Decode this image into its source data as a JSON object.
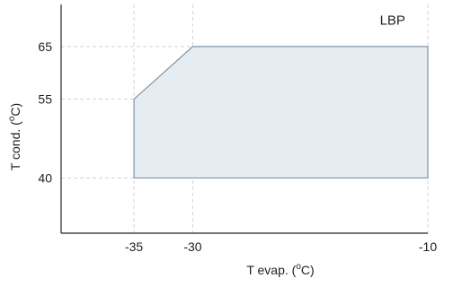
{
  "chart_data": {
    "type": "area",
    "title": "",
    "xlabel": "T evap. (°C)",
    "ylabel": "T cond. (°C)",
    "xlabel_parts": {
      "before": "T evap. (",
      "deg": "o",
      "after": "C)"
    },
    "ylabel_parts": {
      "before": "T cond. (",
      "deg": "o",
      "after": "C)"
    },
    "xlim": [
      -41.2,
      -10
    ],
    "ylim": [
      29.5,
      73
    ],
    "x_ticks": [
      {
        "value": -35,
        "label": "-35"
      },
      {
        "value": -30,
        "label": "-30"
      },
      {
        "value": -10,
        "label": "-10"
      }
    ],
    "y_ticks": [
      {
        "value": 65,
        "label": "65"
      },
      {
        "value": 55,
        "label": "55"
      },
      {
        "value": 40,
        "label": "40"
      }
    ],
    "grid": true,
    "region": {
      "name": "LBP",
      "points": [
        {
          "x": -35,
          "y": 40
        },
        {
          "x": -35,
          "y": 55
        },
        {
          "x": -30,
          "y": 65
        },
        {
          "x": -10,
          "y": 65
        },
        {
          "x": -10,
          "y": 40
        }
      ]
    },
    "annotation": {
      "text": "LBP",
      "x": -13,
      "y": 69.2
    },
    "colors": {
      "fill": "#e6edf2",
      "stroke": "#8496a6",
      "axis": "#222222",
      "grid": "#d4d4d4"
    }
  }
}
